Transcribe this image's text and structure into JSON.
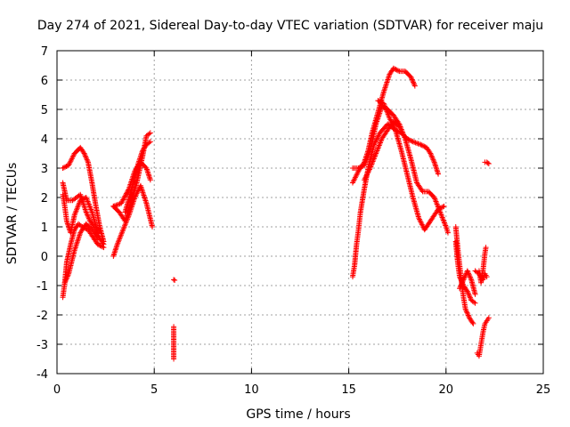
{
  "chart_data": {
    "type": "scatter",
    "title": "Day 274 of 2021, Sidereal Day-to-day VTEC variation (SDTVAR) for receiver maju",
    "xlabel": "GPS time / hours",
    "ylabel": "SDTVAR / TECUs",
    "xlim": [
      0,
      25
    ],
    "ylim": [
      -4,
      7
    ],
    "xticks": [
      0,
      5,
      10,
      15,
      20,
      25
    ],
    "yticks": [
      -4,
      -3,
      -2,
      -1,
      0,
      1,
      2,
      3,
      4,
      5,
      6,
      7
    ],
    "grid": true,
    "marker": "+",
    "series": [
      {
        "name": "SDTVAR",
        "color": "#ff0000",
        "tracks": [
          [
            [
              0.3,
              -1.4
            ],
            [
              0.4,
              -0.9
            ],
            [
              0.5,
              -0.2
            ],
            [
              0.7,
              0.4
            ],
            [
              0.9,
              0.9
            ],
            [
              1.1,
              1.1
            ],
            [
              1.3,
              1.0
            ],
            [
              1.6,
              0.9
            ],
            [
              1.9,
              0.6
            ],
            [
              2.1,
              0.4
            ],
            [
              2.4,
              0.3
            ]
          ],
          [
            [
              0.3,
              2.5
            ],
            [
              0.5,
              1.9
            ],
            [
              0.8,
              1.9
            ],
            [
              1.0,
              2.0
            ],
            [
              1.2,
              2.1
            ],
            [
              1.5,
              1.5
            ],
            [
              1.7,
              1.2
            ],
            [
              2.0,
              0.9
            ],
            [
              2.2,
              0.6
            ],
            [
              2.4,
              0.4
            ]
          ],
          [
            [
              0.3,
              3.0
            ],
            [
              0.6,
              3.1
            ],
            [
              0.9,
              3.5
            ],
            [
              1.2,
              3.7
            ],
            [
              1.4,
              3.5
            ],
            [
              1.6,
              3.2
            ],
            [
              1.8,
              2.5
            ],
            [
              2.0,
              1.7
            ],
            [
              2.2,
              1.0
            ],
            [
              2.4,
              0.5
            ]
          ],
          [
            [
              0.3,
              2.1
            ],
            [
              0.4,
              1.7
            ],
            [
              0.5,
              1.2
            ],
            [
              0.7,
              0.8
            ],
            [
              0.9,
              1.4
            ],
            [
              1.2,
              1.9
            ],
            [
              1.5,
              2.0
            ],
            [
              1.8,
              1.5
            ],
            [
              2.1,
              0.8
            ]
          ],
          [
            [
              0.4,
              -0.9
            ],
            [
              0.6,
              -0.6
            ],
            [
              0.9,
              0.2
            ],
            [
              1.2,
              0.8
            ],
            [
              1.5,
              1.1
            ],
            [
              1.8,
              0.9
            ],
            [
              2.1,
              0.6
            ]
          ],
          [
            [
              2.9,
              0.0
            ],
            [
              3.1,
              0.4
            ],
            [
              3.4,
              0.9
            ],
            [
              3.7,
              1.4
            ],
            [
              4.0,
              2.0
            ],
            [
              4.3,
              2.4
            ],
            [
              4.6,
              1.8
            ],
            [
              4.9,
              1.0
            ]
          ],
          [
            [
              2.9,
              1.7
            ],
            [
              3.3,
              1.8
            ],
            [
              3.7,
              2.3
            ],
            [
              4.0,
              2.9
            ],
            [
              4.3,
              3.2
            ],
            [
              4.6,
              3.0
            ],
            [
              4.8,
              2.6
            ]
          ],
          [
            [
              2.9,
              1.7
            ],
            [
              3.2,
              1.5
            ],
            [
              3.5,
              1.2
            ],
            [
              3.8,
              1.8
            ],
            [
              4.1,
              2.5
            ],
            [
              4.4,
              3.4
            ],
            [
              4.6,
              4.1
            ],
            [
              4.8,
              4.2
            ]
          ],
          [
            [
              3.5,
              1.5
            ],
            [
              3.8,
              2.2
            ],
            [
              4.1,
              3.0
            ],
            [
              4.4,
              3.6
            ],
            [
              4.6,
              3.8
            ],
            [
              4.8,
              3.9
            ]
          ],
          [
            [
              6.0,
              -0.8
            ],
            [
              6.05,
              -0.82
            ]
          ],
          [
            [
              6.0,
              -2.4
            ],
            [
              6.0,
              -2.55
            ],
            [
              6.0,
              -3.5
            ]
          ],
          [
            [
              15.2,
              -0.7
            ],
            [
              15.3,
              -0.3
            ],
            [
              15.4,
              0.4
            ],
            [
              15.5,
              0.9
            ],
            [
              15.6,
              1.5
            ],
            [
              15.8,
              2.3
            ],
            [
              16.0,
              3.0
            ],
            [
              16.3,
              3.8
            ],
            [
              16.6,
              4.2
            ],
            [
              17.0,
              4.5
            ],
            [
              17.4,
              4.3
            ],
            [
              17.7,
              3.6
            ],
            [
              18.0,
              2.8
            ],
            [
              18.3,
              2.0
            ],
            [
              18.6,
              1.3
            ],
            [
              18.9,
              0.9
            ],
            [
              19.3,
              1.3
            ],
            [
              19.6,
              1.6
            ],
            [
              19.9,
              1.7
            ]
          ],
          [
            [
              15.2,
              2.5
            ],
            [
              15.5,
              2.9
            ],
            [
              15.8,
              3.2
            ],
            [
              16.0,
              3.6
            ],
            [
              16.2,
              4.2
            ],
            [
              16.5,
              4.9
            ],
            [
              16.8,
              5.6
            ],
            [
              17.1,
              6.2
            ],
            [
              17.3,
              6.4
            ],
            [
              17.6,
              6.3
            ],
            [
              17.9,
              6.3
            ],
            [
              18.2,
              6.1
            ],
            [
              18.4,
              5.8
            ]
          ],
          [
            [
              15.2,
              3.0
            ],
            [
              15.5,
              3.0
            ],
            [
              15.8,
              3.1
            ],
            [
              16.1,
              3.6
            ],
            [
              16.4,
              4.5
            ],
            [
              16.7,
              5.1
            ],
            [
              17.0,
              5.0
            ],
            [
              17.3,
              4.8
            ],
            [
              17.6,
              4.5
            ],
            [
              17.9,
              4.0
            ],
            [
              18.2,
              3.3
            ],
            [
              18.5,
              2.5
            ],
            [
              18.8,
              2.2
            ],
            [
              19.1,
              2.2
            ],
            [
              19.4,
              2.0
            ],
            [
              19.7,
              1.5
            ],
            [
              20.0,
              1.0
            ],
            [
              20.1,
              0.8
            ]
          ],
          [
            [
              16.5,
              5.3
            ],
            [
              16.8,
              5.2
            ],
            [
              17.1,
              4.7
            ],
            [
              17.4,
              4.3
            ],
            [
              17.7,
              4.2
            ],
            [
              18.0,
              4.0
            ],
            [
              18.3,
              3.9
            ],
            [
              18.7,
              3.8
            ],
            [
              19.0,
              3.7
            ],
            [
              19.2,
              3.5
            ],
            [
              19.4,
              3.2
            ],
            [
              19.6,
              2.8
            ]
          ],
          [
            [
              15.8,
              2.6
            ],
            [
              16.1,
              3.0
            ],
            [
              16.4,
              3.5
            ],
            [
              16.7,
              4.0
            ],
            [
              17.0,
              4.3
            ],
            [
              17.3,
              4.6
            ],
            [
              17.6,
              4.4
            ]
          ],
          [
            [
              20.5,
              1.0
            ],
            [
              20.6,
              0.3
            ],
            [
              20.7,
              -0.3
            ],
            [
              20.8,
              -0.9
            ],
            [
              20.9,
              -1.4
            ],
            [
              21.0,
              -1.8
            ],
            [
              21.2,
              -2.1
            ],
            [
              21.4,
              -2.3
            ]
          ],
          [
            [
              20.5,
              0.5
            ],
            [
              20.6,
              -0.2
            ],
            [
              20.7,
              -0.7
            ],
            [
              20.9,
              -1.0
            ],
            [
              21.1,
              -1.2
            ],
            [
              21.3,
              -1.5
            ],
            [
              21.5,
              -1.6
            ]
          ],
          [
            [
              20.7,
              -1.1
            ],
            [
              20.9,
              -0.8
            ],
            [
              21.1,
              -0.5
            ],
            [
              21.3,
              -0.8
            ],
            [
              21.5,
              -1.3
            ]
          ],
          [
            [
              21.5,
              -0.5
            ],
            [
              21.7,
              -0.6
            ],
            [
              21.9,
              -0.8
            ],
            [
              22.0,
              -0.6
            ],
            [
              22.1,
              -0.7
            ]
          ],
          [
            [
              21.6,
              -3.3
            ],
            [
              21.7,
              -3.4
            ],
            [
              21.8,
              -3.0
            ],
            [
              21.9,
              -2.6
            ],
            [
              22.0,
              -2.3
            ],
            [
              22.1,
              -2.2
            ],
            [
              22.2,
              -2.1
            ]
          ],
          [
            [
              21.7,
              -0.5
            ],
            [
              21.8,
              -0.9
            ],
            [
              21.9,
              -0.5
            ],
            [
              22.0,
              0.1
            ],
            [
              22.05,
              0.3
            ]
          ],
          [
            [
              22.0,
              3.2
            ],
            [
              22.1,
              3.2
            ],
            [
              22.2,
              3.15
            ]
          ]
        ]
      }
    ]
  }
}
